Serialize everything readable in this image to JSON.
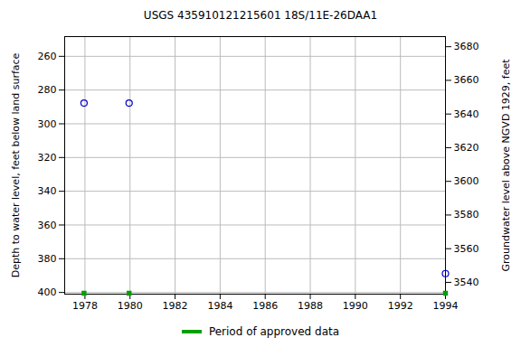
{
  "chart_data": {
    "type": "scatter",
    "title": "USGS 435910121215601 18S/11E-26DAA1",
    "y_label": "Depth to water level, feet below land surface",
    "y2_label": "Groundwater level above NGVD 1929, feet",
    "xlim": [
      1977.1,
      1994
    ],
    "xticks": [
      1978,
      1980,
      1982,
      1984,
      1986,
      1988,
      1990,
      1992,
      1994
    ],
    "ylim": [
      248.3,
      401
    ],
    "yticks": [
      260,
      280,
      300,
      320,
      340,
      360,
      380,
      400
    ],
    "y2lim": [
      3533,
      3686
    ],
    "y2ticks": [
      3540,
      3560,
      3580,
      3600,
      3620,
      3640,
      3660,
      3680
    ],
    "grid": true,
    "legend": "bottom",
    "series": [
      {
        "x": [
          1977.96,
          1979.96,
          1994
        ],
        "values": [
          287.7,
          287.7,
          388.8
        ],
        "color": "#0000cc",
        "marker": "circle"
      },
      {
        "name": "Period of approved data",
        "x": [
          1977.96,
          1979.96,
          1994
        ],
        "color": "#00a000",
        "marker": "square"
      }
    ]
  }
}
